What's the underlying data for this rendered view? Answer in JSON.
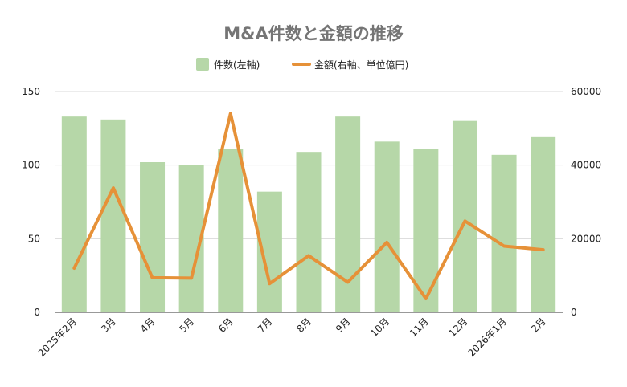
{
  "chart_data": {
    "type": "bar",
    "title": "M&A件数と金額の推移",
    "categories": [
      "2025年2月",
      "3月",
      "4月",
      "5月",
      "6月",
      "7月",
      "8月",
      "9月",
      "10月",
      "11月",
      "12月",
      "2026年1月",
      "2月"
    ],
    "series": [
      {
        "name": "件数(左軸)",
        "type": "bar",
        "axis": "left",
        "color": "#b6d7a8",
        "values": [
          133,
          131,
          102,
          100,
          111,
          82,
          109,
          133,
          116,
          111,
          130,
          107,
          119
        ]
      },
      {
        "name": "金額(右軸、単位億円)",
        "type": "line",
        "axis": "right",
        "color": "#e69138",
        "values": [
          12000,
          33800,
          9400,
          9300,
          54000,
          7800,
          15400,
          8200,
          19000,
          3700,
          24800,
          18000,
          17000
        ]
      }
    ],
    "ylim_left": [
      0,
      150
    ],
    "yticks_left": [
      0,
      50,
      100,
      150
    ],
    "ylim_right": [
      0,
      60000
    ],
    "yticks_right": [
      0,
      20000,
      40000,
      60000
    ],
    "grid": true,
    "legend_position": "top"
  }
}
